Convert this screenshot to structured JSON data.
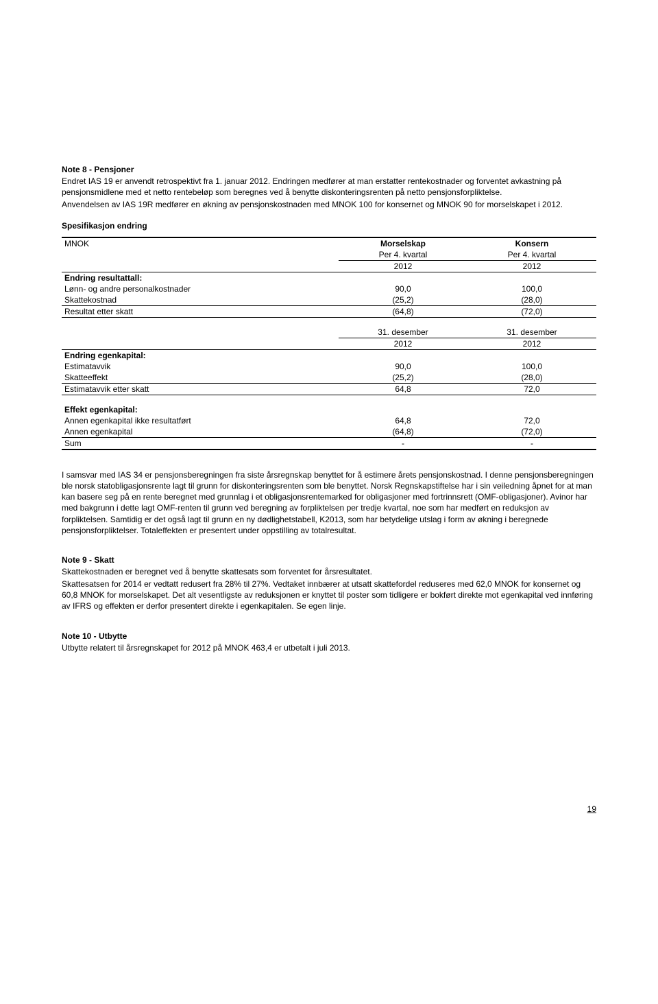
{
  "note8": {
    "title": "Note 8 - Pensjoner",
    "p1": "Endret IAS 19 er anvendt retrospektivt fra 1. januar 2012. Endringen medfører at man erstatter rentekostnader og forventet avkastning på pensjonsmidlene med et netto rentebeløp som beregnes ved å benytte diskonteringsrenten på netto pensjonsforpliktelse.",
    "p2": "Anvendelsen av IAS 19R medfører en økning av pensjonskostnaden med MNOK 100 for konsernet og MNOK 90 for morselskapet i 2012.",
    "spec": "Spesifikasjon endring"
  },
  "tbl": {
    "unit": "MNOK",
    "col1_h1": "Morselskap",
    "col1_h2": "Per 4. kvartal",
    "col1_h3": "2012",
    "col2_h1": "Konsern",
    "col2_h2": "Per 4. kvartal",
    "col2_h3": "2012",
    "sec1_title": "Endring resultattall:",
    "r1_label": "Lønn- og andre personalkostnader",
    "r1_a": "90,0",
    "r1_b": "100,0",
    "r2_label": "Skattekostnad",
    "r2_a": "(25,2)",
    "r2_b": "(28,0)",
    "r3_label": "Resultat etter skatt",
    "r3_a": "(64,8)",
    "r3_b": "(72,0)",
    "mid_h1a": "31. desember",
    "mid_h1b": "31. desember",
    "mid_h2a": "2012",
    "mid_h2b": "2012",
    "sec2_title": "Endring egenkapital:",
    "r4_label": "Estimatavvik",
    "r4_a": "90,0",
    "r4_b": "100,0",
    "r5_label": "Skatteeffekt",
    "r5_a": "(25,2)",
    "r5_b": "(28,0)",
    "r6_label": "Estimatavvik etter skatt",
    "r6_a": "64,8",
    "r6_b": "72,0",
    "sec3_title": "Effekt egenkapital:",
    "r7_label": "Annen egenkapital ikke resultatført",
    "r7_a": "64,8",
    "r7_b": "72,0",
    "r8_label": "Annen egenkapital",
    "r8_a": "(64,8)",
    "r8_b": "(72,0)",
    "r9_label": "Sum",
    "r9_a": "-",
    "r9_b": "-"
  },
  "ias34": "I samsvar med IAS 34 er pensjonsberegningen fra siste årsregnskap benyttet for å estimere årets pensjonskostnad. I denne pensjonsberegningen ble norsk statobligasjonsrente lagt til grunn for diskonteringsrenten som ble benyttet. Norsk Regnskapstiftelse har i sin veiledning åpnet for at man kan basere seg på en rente beregnet med grunnlag i et obligasjonsrentemarked for obligasjoner med fortrinnsrett (OMF-obligasjoner). Avinor har med bakgrunn i dette lagt OMF-renten til grunn ved beregning av forpliktelsen per tredje kvartal, noe som har medført en reduksjon av forpliktelsen. Samtidig er det også lagt til grunn en ny dødlighetstabell, K2013, som har betydelige utslag i form av økning i beregnede pensjonsforpliktelser. Totaleffekten er presentert under oppstilling av totalresultat.",
  "note9": {
    "title": "Note 9 - Skatt",
    "p1": "Skattekostnaden er beregnet ved å benytte skattesats som forventet for årsresultatet.",
    "p2": "Skattesatsen for 2014 er vedtatt redusert fra 28% til 27%. Vedtaket innbærer at utsatt skattefordel reduseres med 62,0 MNOK for konsernet og 60,8 MNOK for morselskapet. Det alt vesentligste av reduksjonen er knyttet til poster som tidligere er bokført direkte mot egenkapital ved innføring av IFRS og effekten er derfor presentert direkte i egenkapitalen. Se egen linje."
  },
  "note10": {
    "title": "Note 10 - Utbytte",
    "p1": "Utbytte relatert til årsregnskapet for 2012 på MNOK 463,4 er utbetalt i juli 2013."
  },
  "pagenum": "19"
}
